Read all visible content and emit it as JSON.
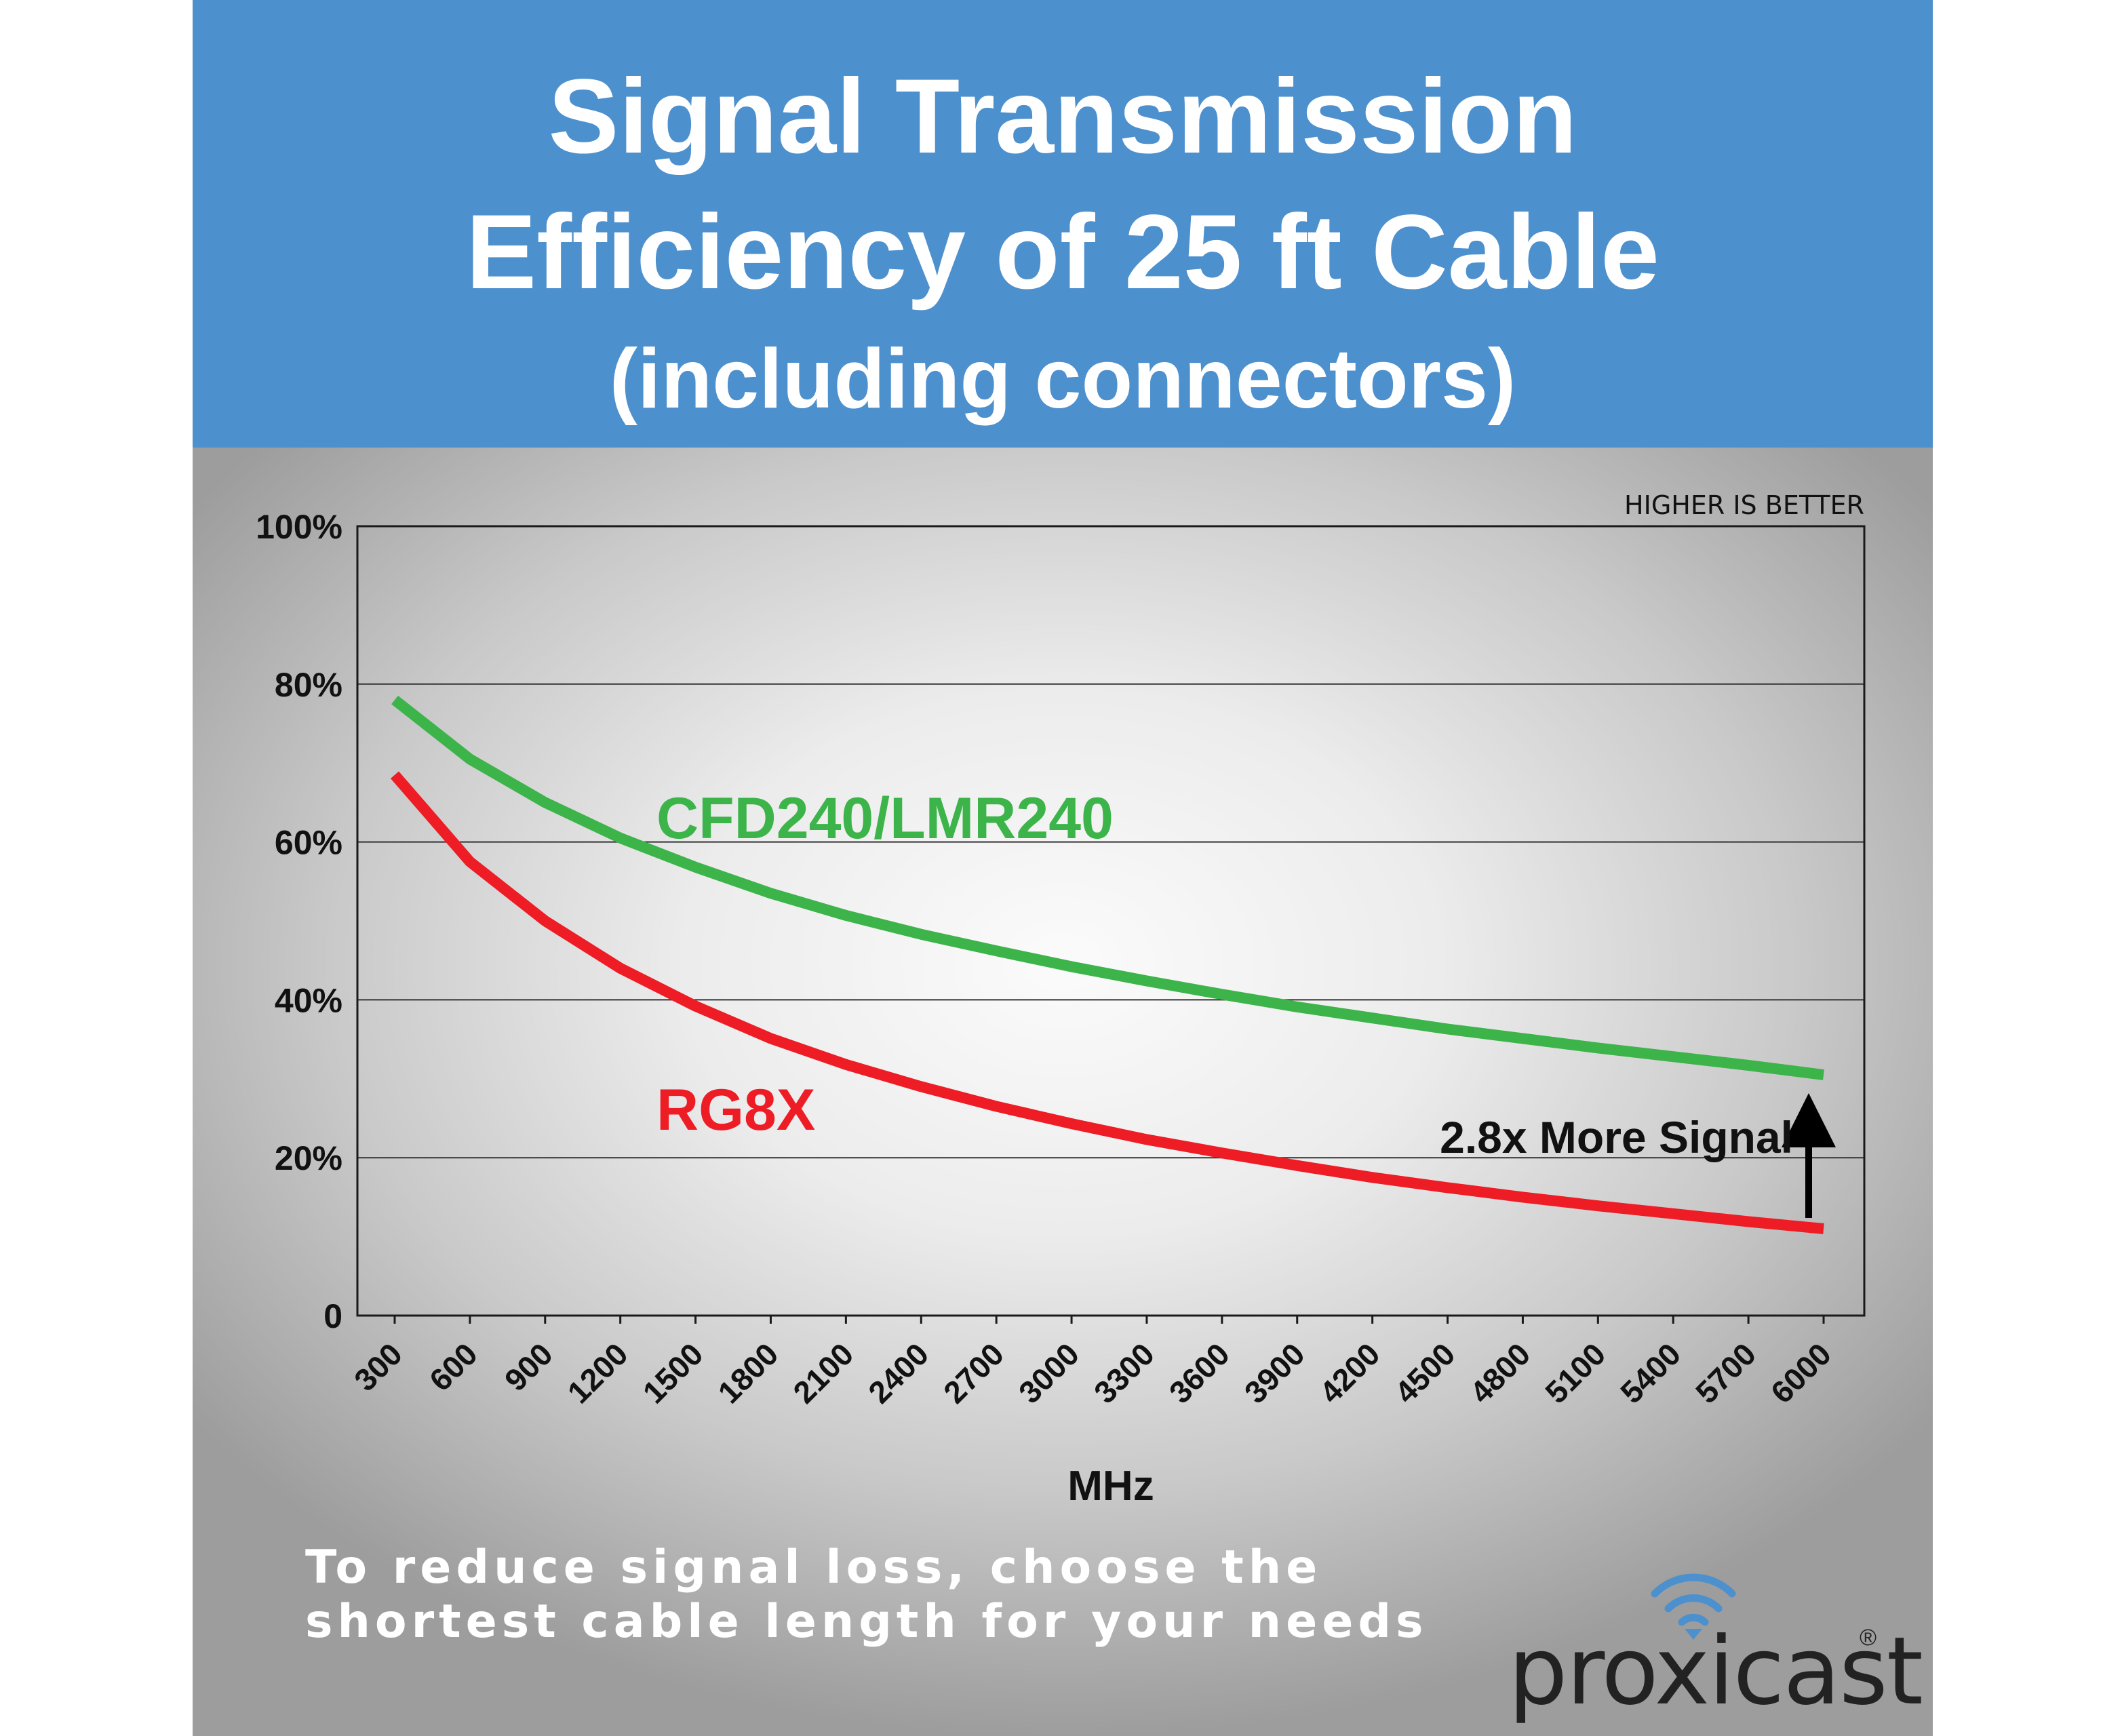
{
  "header": {
    "title_line1": "Signal Transmission",
    "title_line2": "Efficiency of 25 ft Cable",
    "subtitle": "(including connectors)",
    "background_color": "#4d90ce"
  },
  "chart_data": {
    "type": "line",
    "title": "Signal Transmission Efficiency of 25 ft Cable",
    "subtitle": "(including connectors)",
    "xlabel": "MHz",
    "ylabel": "",
    "x": [
      300,
      600,
      900,
      1200,
      1500,
      1800,
      2100,
      2400,
      2700,
      3000,
      3300,
      3600,
      3900,
      4200,
      4500,
      4800,
      5100,
      5400,
      5700,
      6000
    ],
    "x_tick_labels": [
      "300",
      "600",
      "900",
      "1200",
      "1500",
      "1800",
      "2100",
      "2400",
      "2700",
      "3000",
      "3300",
      "3600",
      "3900",
      "4200",
      "4500",
      "4800",
      "5100",
      "5400",
      "5700",
      "6000"
    ],
    "ylim": [
      0,
      100
    ],
    "y_ticks": [
      0,
      20,
      40,
      60,
      80,
      100
    ],
    "y_tick_labels": [
      "0",
      "20%",
      "40%",
      "60%",
      "80%",
      "100%"
    ],
    "grid": "horizontal",
    "series": [
      {
        "name": "CFD240/LMR240",
        "color": "#3cb44a",
        "values": [
          78,
          70.5,
          65,
          60.5,
          56.8,
          53.5,
          50.7,
          48.3,
          46.2,
          44.2,
          42.4,
          40.7,
          39.1,
          37.7,
          36.3,
          35.1,
          33.9,
          32.8,
          31.7,
          30.5
        ]
      },
      {
        "name": "RG8X",
        "color": "#ee1c24",
        "values": [
          68.5,
          57.5,
          50,
          44,
          39.2,
          35.1,
          31.8,
          29,
          26.5,
          24.3,
          22.3,
          20.6,
          19,
          17.5,
          16.2,
          15,
          13.9,
          12.9,
          11.9,
          11
        ]
      }
    ],
    "annotations": {
      "top_right_note": "HIGHER IS BETTER",
      "comparison_label": "2.8x More Signal"
    }
  },
  "footer": {
    "note_line1": "To reduce signal loss, choose the",
    "note_line2": "shortest cable length for your needs",
    "brand": "proxicast",
    "registered": "®",
    "icon": "wifi-signal-icon",
    "icon_color": "#4d90ce"
  }
}
